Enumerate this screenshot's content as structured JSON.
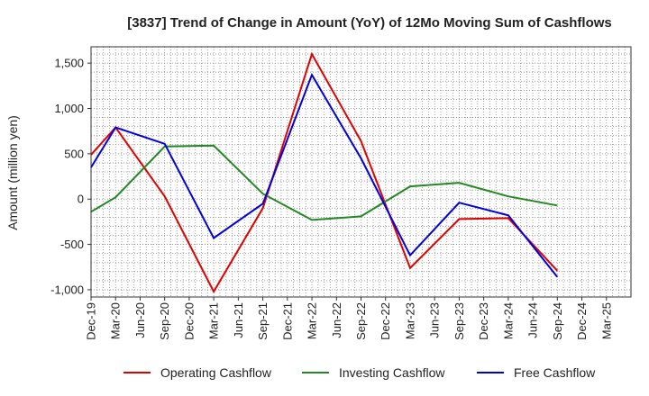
{
  "chart_data": {
    "type": "line",
    "title": "[3837]  Trend of Change in Amount (YoY) of 12Mo Moving Sum of Cashflows",
    "xlabel": "",
    "ylabel": "Amount (million yen)",
    "ylim": [
      -1080,
      1680
    ],
    "yticks": [
      -1000,
      -500,
      0,
      500,
      1000,
      1500
    ],
    "ytick_labels": [
      "-1,000",
      "-500",
      "0",
      "500",
      "1,000",
      "1,500"
    ],
    "grid": true,
    "legend": "bottom",
    "categories": [
      "Dec-19",
      "Mar-20",
      "Jun-20",
      "Sep-20",
      "Dec-20",
      "Mar-21",
      "Jun-21",
      "Sep-21",
      "Dec-21",
      "Mar-22",
      "Jun-22",
      "Sep-22",
      "Dec-22",
      "Mar-23",
      "Jun-23",
      "Sep-23",
      "Dec-23",
      "Mar-24",
      "Jun-24",
      "Sep-24",
      "Dec-24",
      "Mar-25"
    ],
    "series": [
      {
        "name": "Operating Cashflow",
        "color": "#e00000",
        "values": [
          490,
          790,
          null,
          30,
          null,
          -1020,
          null,
          -100,
          null,
          1600,
          null,
          640,
          null,
          -760,
          null,
          -220,
          null,
          -210,
          null,
          -790,
          null,
          null
        ]
      },
      {
        "name": "Investing Cashflow",
        "color": "#228822",
        "values": [
          -140,
          20,
          null,
          580,
          null,
          590,
          null,
          60,
          null,
          -230,
          null,
          -190,
          null,
          140,
          null,
          180,
          null,
          30,
          null,
          -70,
          null,
          null
        ]
      },
      {
        "name": "Free Cashflow",
        "color": "#0000dd",
        "values": [
          350,
          790,
          null,
          610,
          null,
          -430,
          null,
          -50,
          null,
          1370,
          null,
          450,
          null,
          -620,
          null,
          -40,
          null,
          -180,
          null,
          -860,
          null,
          null
        ]
      }
    ]
  }
}
